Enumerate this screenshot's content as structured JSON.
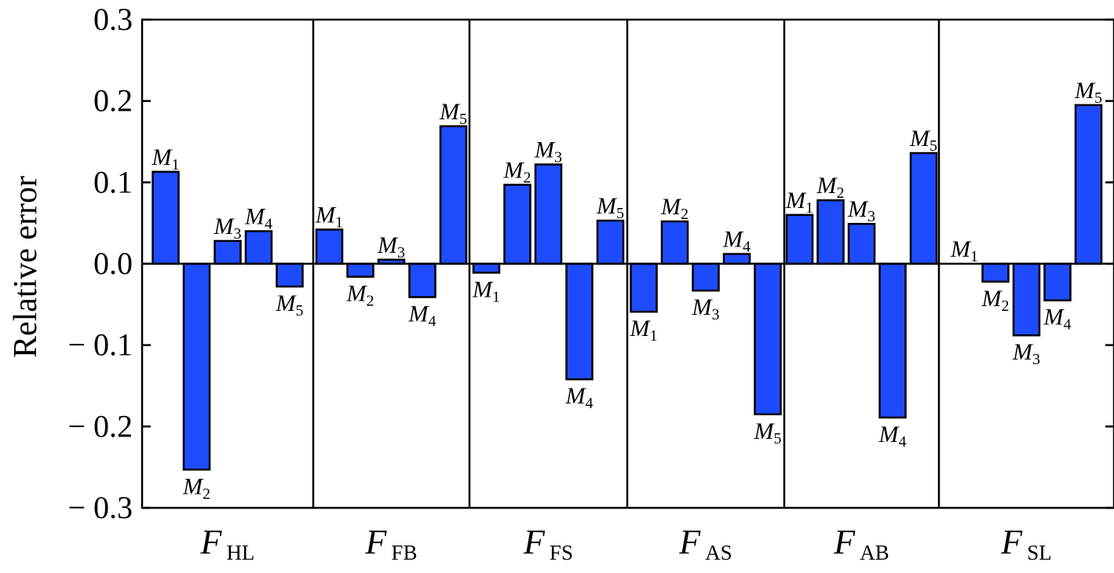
{
  "chart_data": {
    "type": "bar",
    "ylabel": "Relative error",
    "ylim": [
      -0.3,
      0.3
    ],
    "yticks": [
      0.3,
      0.2,
      0.1,
      0.0,
      -0.1,
      -0.2,
      -0.3
    ],
    "ytick_labels": [
      "0.3",
      "0.2",
      "0.1",
      "0.0",
      "− 0.1",
      "− 0.2",
      "− 0.3"
    ],
    "categories": [
      {
        "main": "F",
        "sub": "HL"
      },
      {
        "main": "F",
        "sub": "FB"
      },
      {
        "main": "F",
        "sub": "FS"
      },
      {
        "main": "F",
        "sub": "AS"
      },
      {
        "main": "F",
        "sub": "AB"
      },
      {
        "main": "F",
        "sub": "SL"
      }
    ],
    "bar_label_prefix": "M",
    "bar_label_subs": [
      "1",
      "2",
      "3",
      "4",
      "5"
    ],
    "values": [
      [
        0.113,
        -0.253,
        0.028,
        0.04,
        -0.028
      ],
      [
        0.042,
        -0.016,
        0.005,
        -0.041,
        0.169
      ],
      [
        -0.011,
        0.097,
        0.122,
        -0.142,
        0.053
      ],
      [
        -0.059,
        0.052,
        -0.033,
        0.012,
        -0.185
      ],
      [
        0.06,
        0.078,
        0.049,
        -0.189,
        0.136
      ],
      [
        0.0,
        -0.022,
        -0.088,
        -0.045,
        0.195
      ]
    ],
    "bar_color": "#1f4bff",
    "grid": false
  }
}
